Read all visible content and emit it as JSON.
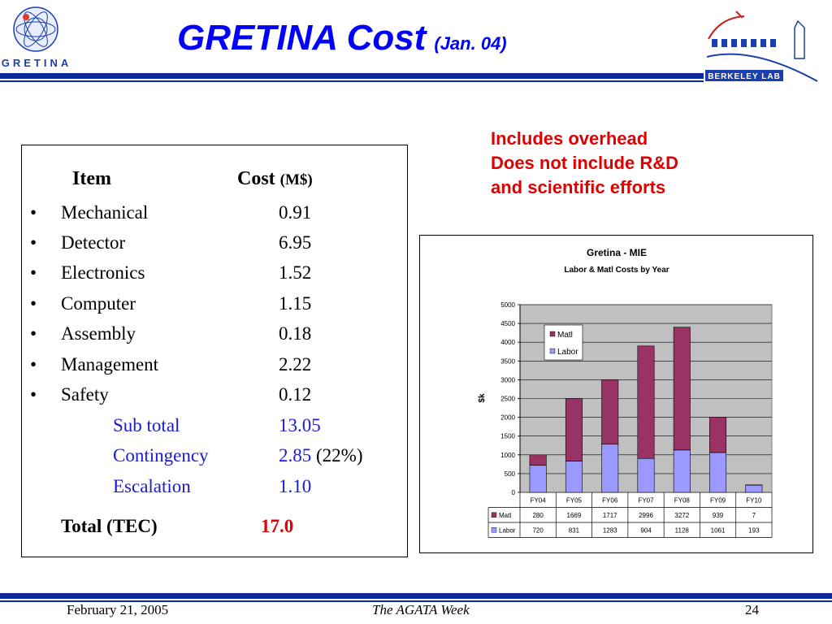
{
  "slide": {
    "title": "GRETINA Cost",
    "subtitle": "(Jan. 04)",
    "left_logo_text": "GRETINA",
    "right_logo_text": "BERKELEY LAB"
  },
  "cost_table": {
    "header_item": "Item",
    "header_cost": "Cost",
    "header_unit": "(M$)",
    "bullet": "•",
    "items": [
      {
        "name": "Mechanical",
        "value": "0.91"
      },
      {
        "name": "Detector",
        "value": "6.95"
      },
      {
        "name": "Electronics",
        "value": "1.52"
      },
      {
        "name": "Computer",
        "value": "1.15"
      },
      {
        "name": "Assembly",
        "value": "0.18"
      },
      {
        "name": "Management",
        "value": "2.22"
      },
      {
        "name": "Safety",
        "value": "0.12"
      }
    ],
    "subtotal_label": "Sub total",
    "subtotal_value": "13.05",
    "contingency_label": "Contingency",
    "contingency_value": "2.85",
    "contingency_pct": "(22%)",
    "escalation_label": "Escalation",
    "escalation_value": "1.10",
    "total_label": "Total (TEC)",
    "total_value": "17.0"
  },
  "notes": {
    "line1": "Includes overhead",
    "line2": "Does not include R&D",
    "line3": "and scientific efforts"
  },
  "chart_data": {
    "type": "bar",
    "stacked": true,
    "title": "Gretina - MIE",
    "subtitle": "Labor & Matl Costs by Year",
    "xlabel": "",
    "ylabel": "$k",
    "ylim": [
      0,
      5000
    ],
    "yticks": [
      0,
      500,
      1000,
      1500,
      2000,
      2500,
      3000,
      3500,
      4000,
      4500,
      5000
    ],
    "grid": true,
    "legend": "top-left",
    "categories": [
      "FY04",
      "FY05",
      "FY06",
      "FY07",
      "FY08",
      "FY09",
      "FY10"
    ],
    "series": [
      {
        "name": "Labor",
        "color": "#9999ff",
        "values": [
          720,
          831,
          1283,
          904,
          1128,
          1061,
          193
        ]
      },
      {
        "name": "Matl",
        "color": "#993366",
        "values": [
          280,
          1669,
          1717,
          2996,
          3272,
          939,
          7
        ]
      }
    ],
    "table_rows": [
      "Matl",
      "Labor"
    ],
    "plot_bg": "#c0c0c0"
  },
  "footer": {
    "date": "February 21, 2005",
    "event": "The AGATA Week",
    "page": "24"
  }
}
